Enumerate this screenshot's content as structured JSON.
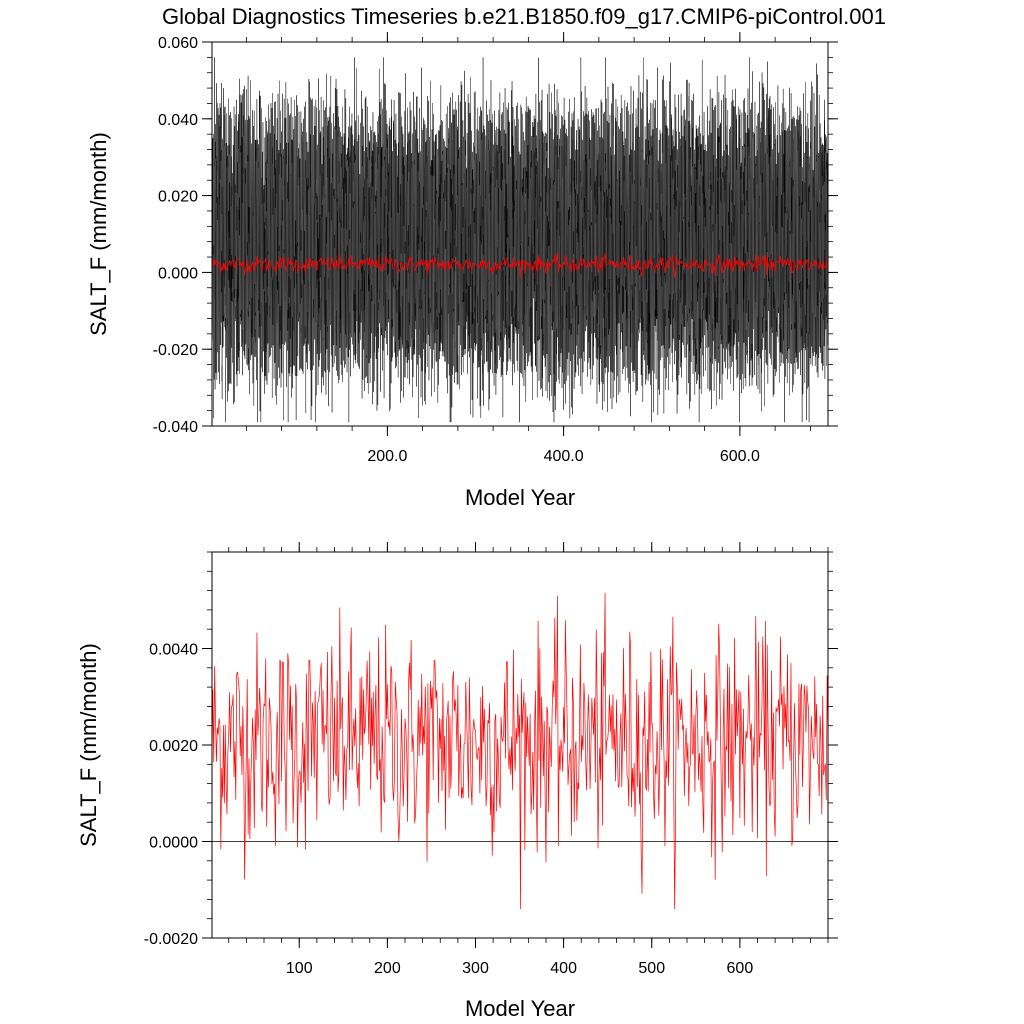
{
  "title": "Global Diagnostics Timeseries b.e21.B1850.f09_g17.CMIP6-piControl.001",
  "chart_data": [
    {
      "type": "line",
      "xlabel": "Model Year",
      "ylabel": "SALT_F (mm/month)",
      "xlim": [
        1,
        700
      ],
      "ylim": [
        -0.04,
        0.06
      ],
      "x_ticks": [
        200,
        400,
        600
      ],
      "x_tick_labels": [
        "200.0",
        "400.0",
        "600.0"
      ],
      "y_ticks": [
        -0.04,
        -0.02,
        0.0,
        0.02,
        0.04,
        0.06
      ],
      "y_tick_labels": [
        "-0.040",
        "-0.020",
        "0.000",
        "0.020",
        "0.040",
        "0.060"
      ],
      "grid": false,
      "series": [
        {
          "description": "monthly values, 8400 points",
          "color": "#000000",
          "x_range": [
            1,
            700
          ],
          "typical_range": [
            -0.03,
            0.045
          ],
          "max": 0.056,
          "min": -0.039,
          "mean": 0.002
        },
        {
          "description": "annual mean",
          "color": "#ff0000",
          "x_range": [
            1,
            700
          ],
          "typical_range": [
            0.0,
            0.0045
          ],
          "mean": 0.0021
        }
      ]
    },
    {
      "type": "line",
      "xlabel": "Model Year",
      "ylabel": "SALT_F (mm/month)",
      "xlim": [
        1,
        700
      ],
      "ylim": [
        -0.002,
        0.006
      ],
      "x_ticks": [
        100,
        200,
        300,
        400,
        500,
        600
      ],
      "x_tick_labels": [
        "100",
        "200",
        "300",
        "400",
        "500",
        "600"
      ],
      "y_ticks": [
        -0.002,
        0.0,
        0.002,
        0.004
      ],
      "y_tick_labels": [
        "-0.0020",
        "0.0000",
        "0.0020",
        "0.0040"
      ],
      "reference_line": 0.0,
      "grid": false,
      "series": [
        {
          "description": "annual mean",
          "color": "#ff0000",
          "x_range": [
            1,
            700
          ],
          "mean": 0.0021,
          "max": 0.0057,
          "min": -0.0014
        }
      ]
    }
  ],
  "colors": {
    "monthly": "#000000",
    "annual": "#ff0000",
    "axes": "#000000"
  }
}
